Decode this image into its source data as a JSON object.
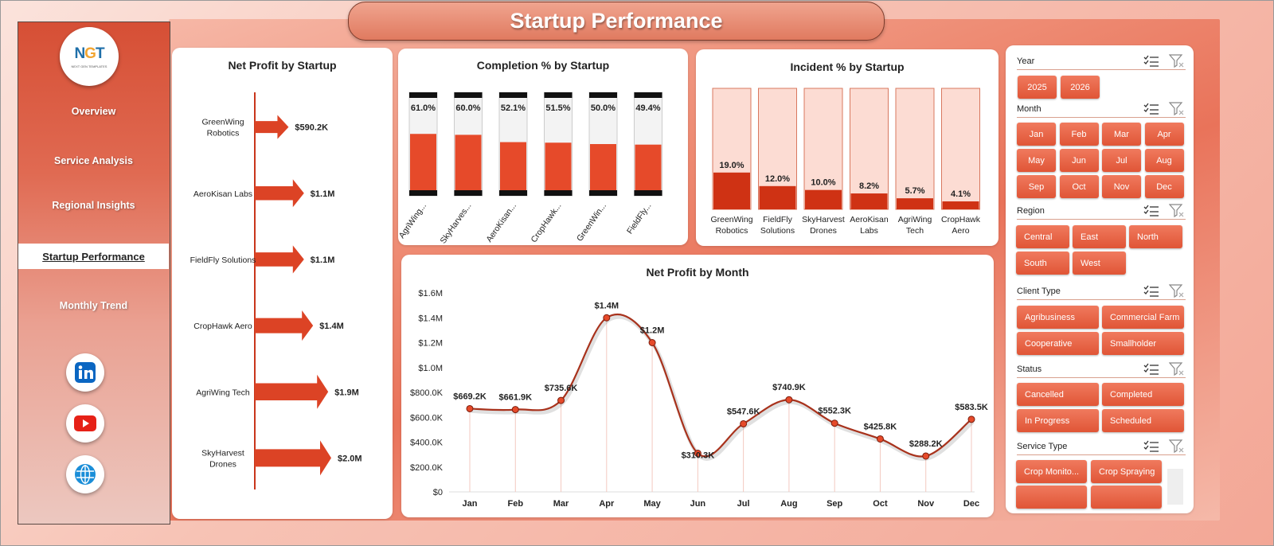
{
  "title": "Startup Performance",
  "logo": {
    "text_n": "N",
    "text_g": "G",
    "text_t": "T",
    "subtitle": "NEXT GEN TEMPLATES"
  },
  "nav": [
    {
      "label": "Overview",
      "active": false
    },
    {
      "label": "Service Analysis",
      "active": false
    },
    {
      "label": "Regional Insights",
      "active": false
    },
    {
      "label": "Startup Performance",
      "active": true
    },
    {
      "label": "Monthly Trend",
      "active": false
    }
  ],
  "social": [
    "linkedin-icon",
    "youtube-icon",
    "globe-icon"
  ],
  "colors": {
    "accent": "#e64a2a",
    "dark_red": "#b82c15",
    "line": "#a8321c",
    "panel": "#ffffff"
  },
  "charts": {
    "net_profit_by_startup": {
      "type": "bar",
      "title": "Net Profit by Startup",
      "categories": [
        "GreenWing Robotics",
        "AeroKisan Labs",
        "FieldFly Solutions",
        "CropHawk Aero",
        "AgriWing Tech",
        "SkyHarvest Drones"
      ],
      "category_lines": [
        [
          "GreenWing",
          "Robotics"
        ],
        [
          "AeroKisan Labs"
        ],
        [
          "FieldFly Solutions"
        ],
        [
          "CropHawk Aero"
        ],
        [
          "AgriWing Tech"
        ],
        [
          "SkyHarvest",
          "Drones"
        ]
      ],
      "values": [
        590.2,
        1100,
        1100,
        1400,
        1900,
        2000
      ],
      "labels": [
        "$590.2K",
        "$1.1M",
        "$1.1M",
        "$1.4M",
        "$1.9M",
        "$2.0M"
      ]
    },
    "completion_by_startup": {
      "type": "bar",
      "title": "Completion % by Startup",
      "categories": [
        "AgriWing...",
        "SkyHarves...",
        "AeroKisan...",
        "CropHawk...",
        "GreenWin...",
        "FieldFly..."
      ],
      "values": [
        61.0,
        60.0,
        52.1,
        51.5,
        50.0,
        49.4
      ],
      "labels": [
        "61.0%",
        "60.0%",
        "52.1%",
        "51.5%",
        "50.0%",
        "49.4%"
      ]
    },
    "incident_by_startup": {
      "type": "bar",
      "title": "Incident % by Startup",
      "categories": [
        "GreenWing Robotics",
        "FieldFly Solutions",
        "SkyHarvest Drones",
        "AeroKisan Labs",
        "AgriWing Tech",
        "CropHawk Aero"
      ],
      "category_lines": [
        [
          "GreenWing",
          "Robotics"
        ],
        [
          "FieldFly",
          "Solutions"
        ],
        [
          "SkyHarvest",
          "Drones"
        ],
        [
          "AeroKisan",
          "Labs"
        ],
        [
          "AgriWing",
          "Tech"
        ],
        [
          "CropHawk",
          "Aero"
        ]
      ],
      "values": [
        19.0,
        12.0,
        10.0,
        8.2,
        5.7,
        4.1
      ],
      "labels": [
        "19.0%",
        "12.0%",
        "10.0%",
        "8.2%",
        "5.7%",
        "4.1%"
      ]
    },
    "net_profit_by_month": {
      "type": "line",
      "title": "Net Profit by Month",
      "categories": [
        "Jan",
        "Feb",
        "Mar",
        "Apr",
        "May",
        "Jun",
        "Jul",
        "Aug",
        "Sep",
        "Oct",
        "Nov",
        "Dec"
      ],
      "values": [
        669.2,
        661.9,
        735.6,
        1400,
        1200,
        310.3,
        547.6,
        740.9,
        552.3,
        425.8,
        288.2,
        583.5
      ],
      "labels": [
        "$669.2K",
        "$661.9K",
        "$735.6K",
        "$1.4M",
        "$1.2M",
        "$310.3K",
        "$547.6K",
        "$740.9K",
        "$552.3K",
        "$425.8K",
        "$288.2K",
        "$583.5K"
      ],
      "yticks": [
        "$0",
        "$200.0K",
        "$400.0K",
        "$600.0K",
        "$800.0K",
        "$1.0M",
        "$1.2M",
        "$1.4M",
        "$1.6M"
      ],
      "ylim": [
        0,
        1600
      ]
    }
  },
  "slicers": {
    "year": {
      "label": "Year",
      "items": [
        "2025",
        "2026"
      ]
    },
    "month": {
      "label": "Month",
      "items": [
        "Jan",
        "Feb",
        "Mar",
        "Apr",
        "May",
        "Jun",
        "Jul",
        "Aug",
        "Sep",
        "Oct",
        "Nov",
        "Dec"
      ]
    },
    "region": {
      "label": "Region",
      "items": [
        "Central",
        "East",
        "North",
        "South",
        "West"
      ]
    },
    "client_type": {
      "label": "Client Type",
      "items": [
        "Agribusiness",
        "Commercial Farm",
        "Cooperative",
        "Smallholder"
      ]
    },
    "status": {
      "label": "Status",
      "items": [
        "Cancelled",
        "Completed",
        "In Progress",
        "Scheduled"
      ]
    },
    "service_type": {
      "label": "Service Type",
      "items": [
        "Crop Monito...",
        "Crop Spraying"
      ]
    }
  }
}
